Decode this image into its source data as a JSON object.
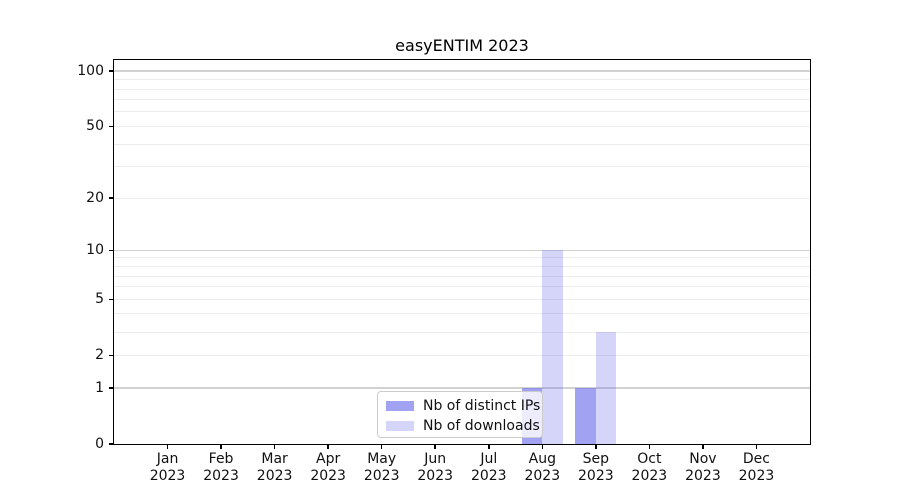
{
  "chart_data": {
    "type": "bar",
    "title": "easyENTIM 2023",
    "xlabel": "",
    "ylabel": "",
    "categories": [
      {
        "month": "Jan",
        "year": "2023"
      },
      {
        "month": "Feb",
        "year": "2023"
      },
      {
        "month": "Mar",
        "year": "2023"
      },
      {
        "month": "Apr",
        "year": "2023"
      },
      {
        "month": "May",
        "year": "2023"
      },
      {
        "month": "Jun",
        "year": "2023"
      },
      {
        "month": "Jul",
        "year": "2023"
      },
      {
        "month": "Aug",
        "year": "2023"
      },
      {
        "month": "Sep",
        "year": "2023"
      },
      {
        "month": "Oct",
        "year": "2023"
      },
      {
        "month": "Nov",
        "year": "2023"
      },
      {
        "month": "Dec",
        "year": "2023"
      }
    ],
    "series": [
      {
        "name": "Nb of distinct IPs",
        "color": "rgba(105,105,235,0.62)",
        "values": [
          0,
          0,
          0,
          0,
          0,
          0,
          0,
          1,
          1,
          0,
          0,
          0
        ]
      },
      {
        "name": "Nb of downloads",
        "color": "rgba(105,105,235,0.28)",
        "values": [
          0,
          0,
          0,
          0,
          0,
          0,
          0,
          10,
          3,
          0,
          0,
          0
        ]
      }
    ],
    "yscale": "log1p",
    "ylim": [
      0,
      115
    ],
    "yticks": [
      0,
      1,
      2,
      5,
      10,
      20,
      50,
      100
    ],
    "grid": {
      "minor_values": [
        2,
        3,
        4,
        5,
        6,
        7,
        8,
        9,
        20,
        30,
        40,
        50,
        60,
        70,
        80,
        90
      ],
      "major_values": [
        1,
        10,
        100
      ],
      "minor_color": "#ececec",
      "major_color": "#d2d2d2"
    },
    "legend_position": "lower center"
  }
}
